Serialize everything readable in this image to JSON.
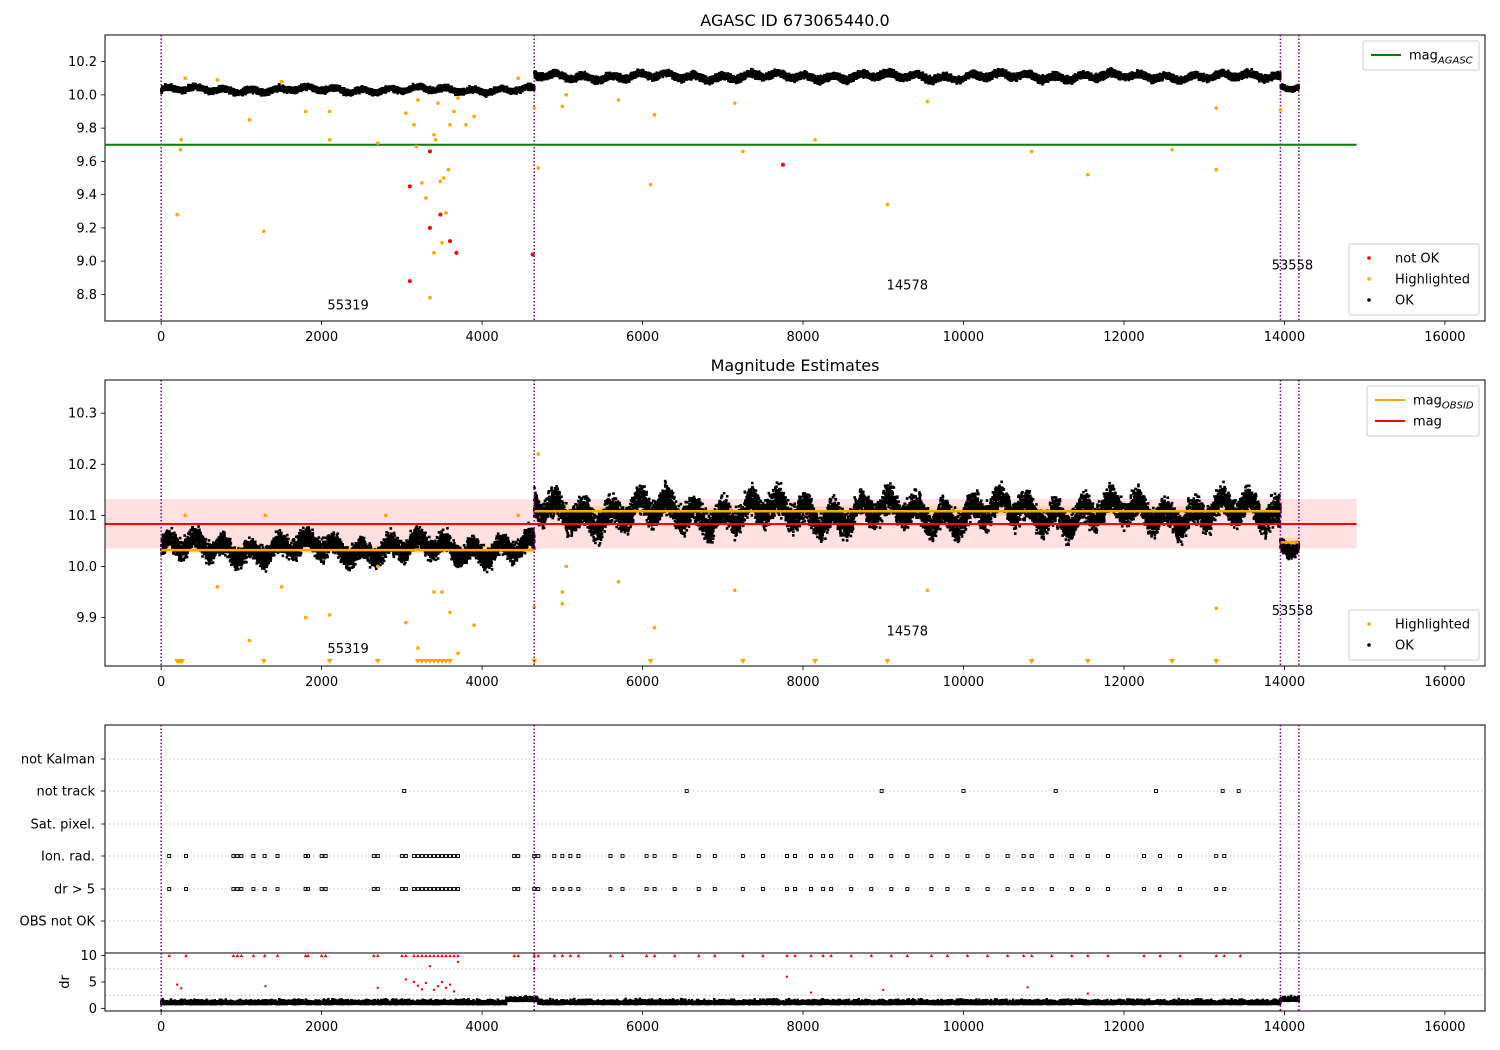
{
  "chart_data": [
    {
      "type": "scatter",
      "title": "AGASC ID 673065440.0",
      "xlim": [
        -700,
        16500
      ],
      "ylim": [
        8.64,
        10.36
      ],
      "xticks": [
        0,
        2000,
        4000,
        6000,
        8000,
        10000,
        12000,
        14000,
        16000
      ],
      "yticks": [
        8.8,
        9.0,
        9.2,
        9.4,
        9.6,
        9.8,
        10.0,
        10.2
      ],
      "obsid_boundaries": [
        0,
        4650,
        13950,
        14180
      ],
      "obsid_labels": [
        {
          "text": "55319",
          "x": 2330,
          "y": 8.71
        },
        {
          "text": "14578",
          "x": 9300,
          "y": 8.83
        },
        {
          "text": "53558",
          "x": 14100,
          "y": 8.95
        }
      ],
      "reference_line": {
        "name": "mag_AGASC",
        "y": 9.7,
        "x_range": [
          -700,
          14900
        ],
        "color": "#008000"
      },
      "series": [
        {
          "name": "OK",
          "color": "#000000",
          "segments": [
            {
              "x": [
                0,
                4650
              ],
              "y_mean": 10.03,
              "y_spread": 0.025
            },
            {
              "x": [
                4650,
                13950
              ],
              "y_mean": 10.11,
              "y_spread": 0.03
            },
            {
              "x": [
                13950,
                14180
              ],
              "y_mean": 10.05,
              "y_spread": 0.02
            }
          ]
        },
        {
          "name": "Highlighted",
          "color": "#ffa500",
          "points": [
            [
              200,
              9.28
            ],
            [
              240,
              9.67
            ],
            [
              250,
              9.73
            ],
            [
              300,
              10.1
            ],
            [
              700,
              10.09
            ],
            [
              1100,
              9.85
            ],
            [
              1280,
              9.18
            ],
            [
              1500,
              10.08
            ],
            [
              1800,
              9.9
            ],
            [
              2100,
              9.73
            ],
            [
              2100,
              9.9
            ],
            [
              2700,
              9.71
            ],
            [
              3050,
              9.89
            ],
            [
              3150,
              9.82
            ],
            [
              3180,
              9.69
            ],
            [
              3200,
              9.97
            ],
            [
              3250,
              9.47
            ],
            [
              3300,
              9.38
            ],
            [
              3350,
              8.78
            ],
            [
              3400,
              9.05
            ],
            [
              3400,
              9.76
            ],
            [
              3420,
              9.73
            ],
            [
              3450,
              9.95
            ],
            [
              3480,
              9.48
            ],
            [
              3500,
              9.11
            ],
            [
              3520,
              9.5
            ],
            [
              3550,
              9.29
            ],
            [
              3580,
              9.55
            ],
            [
              3600,
              9.82
            ],
            [
              3650,
              9.9
            ],
            [
              3700,
              9.98
            ],
            [
              3800,
              9.82
            ],
            [
              3900,
              9.87
            ],
            [
              4450,
              10.1
            ],
            [
              4650,
              9.92
            ],
            [
              4700,
              9.56
            ],
            [
              5000,
              9.93
            ],
            [
              5050,
              10.0
            ],
            [
              5700,
              9.97
            ],
            [
              6100,
              9.46
            ],
            [
              6150,
              9.88
            ],
            [
              7150,
              9.95
            ],
            [
              7250,
              9.66
            ],
            [
              8150,
              9.73
            ],
            [
              9050,
              9.34
            ],
            [
              9550,
              9.96
            ],
            [
              10850,
              9.66
            ],
            [
              11550,
              9.52
            ],
            [
              12600,
              9.67
            ],
            [
              13150,
              9.55
            ],
            [
              13150,
              9.92
            ],
            [
              13950,
              9.91
            ]
          ]
        },
        {
          "name": "not OK",
          "color": "#ff0000",
          "points": [
            [
              3100,
              9.45
            ],
            [
              3100,
              8.88
            ],
            [
              3350,
              9.66
            ],
            [
              3350,
              9.2
            ],
            [
              3480,
              9.28
            ],
            [
              3600,
              9.12
            ],
            [
              3680,
              9.05
            ],
            [
              4630,
              9.04
            ],
            [
              7750,
              9.58
            ]
          ]
        }
      ],
      "legends": [
        {
          "position": "upper right",
          "entries": [
            {
              "label": "mag",
              "sub": "AGASC",
              "color": "#008000",
              "marker": "line"
            }
          ]
        },
        {
          "position": "lower right",
          "entries": [
            {
              "label": "not OK",
              "color": "#ff0000",
              "marker": "dot"
            },
            {
              "label": "Highlighted",
              "color": "#ffa500",
              "marker": "dot"
            },
            {
              "label": "OK",
              "color": "#000000",
              "marker": "dot"
            }
          ]
        }
      ]
    },
    {
      "type": "scatter",
      "title": "Magnitude Estimates",
      "xlim": [
        -700,
        16500
      ],
      "ylim": [
        9.805,
        10.365
      ],
      "xticks": [
        0,
        2000,
        4000,
        6000,
        8000,
        10000,
        12000,
        14000,
        16000
      ],
      "yticks": [
        9.9,
        10.0,
        10.1,
        10.2,
        10.3
      ],
      "obsid_boundaries": [
        0,
        4650,
        13950,
        14180
      ],
      "obsid_labels": [
        {
          "text": "55319",
          "x": 2330,
          "y": 9.83
        },
        {
          "text": "14578",
          "x": 9300,
          "y": 9.865
        },
        {
          "text": "53558",
          "x": 14100,
          "y": 9.905
        }
      ],
      "mag_band": {
        "y": 10.083,
        "lower": 10.035,
        "upper": 10.132,
        "x_range": [
          -700,
          14900
        ],
        "color": "#ff0000"
      },
      "obsid_mags": [
        {
          "x": [
            0,
            4650
          ],
          "y": 10.032,
          "lower": 10.025,
          "upper": 10.04
        },
        {
          "x": [
            4650,
            13950
          ],
          "y": 10.108,
          "lower": 10.1,
          "upper": 10.117
        },
        {
          "x": [
            13950,
            14180
          ],
          "y": 10.047,
          "lower": 10.04,
          "upper": 10.055
        }
      ],
      "series": [
        {
          "name": "OK",
          "color": "#000000",
          "segments": [
            {
              "x": [
                0,
                4650
              ],
              "y_mean": 10.035,
              "y_spread": 0.03
            },
            {
              "x": [
                4650,
                13950
              ],
              "y_mean": 10.105,
              "y_spread": 0.04
            },
            {
              "x": [
                13950,
                14180
              ],
              "y_mean": 10.045,
              "y_spread": 0.02
            }
          ]
        },
        {
          "name": "Highlighted",
          "color": "#ffa500",
          "points": [
            [
              700,
              9.96
            ],
            [
              1100,
              9.855
            ],
            [
              1500,
              9.96
            ],
            [
              1800,
              9.9
            ],
            [
              2100,
              9.905
            ],
            [
              2700,
              10.0
            ],
            [
              3050,
              9.89
            ],
            [
              3200,
              9.84
            ],
            [
              3400,
              9.95
            ],
            [
              3500,
              9.95
            ],
            [
              3600,
              9.91
            ],
            [
              3700,
              9.83
            ],
            [
              3900,
              9.885
            ],
            [
              4650,
              9.92
            ],
            [
              5000,
              9.95
            ],
            [
              5000,
              9.927
            ],
            [
              5050,
              10.0
            ],
            [
              5700,
              9.97
            ],
            [
              6150,
              9.88
            ],
            [
              7150,
              9.953
            ],
            [
              9550,
              9.953
            ],
            [
              13150,
              9.918
            ],
            [
              300,
              10.1
            ],
            [
              1300,
              10.1
            ],
            [
              2800,
              10.1
            ],
            [
              4450,
              10.1
            ],
            [
              4700,
              10.22
            ]
          ]
        },
        {
          "name": "Highlighted (below axis)",
          "color": "#ffa500",
          "marker": "down-triangle",
          "y": 9.81,
          "x": [
            200,
            220,
            240,
            260,
            1280,
            2100,
            2700,
            3200,
            3250,
            3300,
            3350,
            3400,
            3450,
            3500,
            3550,
            3600,
            4650,
            6100,
            7250,
            8150,
            9050,
            10850,
            11550,
            12600,
            13150
          ]
        }
      ],
      "legends": [
        {
          "position": "upper right",
          "entries": [
            {
              "label": "mag",
              "sub": "OBSID",
              "color": "#ffa500",
              "marker": "line"
            },
            {
              "label": "mag",
              "color": "#ff0000",
              "marker": "line"
            }
          ]
        },
        {
          "position": "lower right",
          "entries": [
            {
              "label": "Highlighted",
              "color": "#ffa500",
              "marker": "dot"
            },
            {
              "label": "OK",
              "color": "#000000",
              "marker": "dot"
            }
          ]
        }
      ]
    },
    {
      "type": "scatter",
      "title": "",
      "xlim": [
        -700,
        16500
      ],
      "categories": [
        "not Kalman",
        "not track",
        "Sat. pixel.",
        "Ion. rad.",
        "dr > 5",
        "OBS not OK"
      ],
      "flags": {
        "not Kalman": [],
        "not track": [
          3030,
          6550,
          8980,
          10000,
          11150,
          12400,
          13230,
          13430
        ],
        "Sat. pixel.": [],
        "Ion. rad.": [
          100,
          310,
          900,
          950,
          1000,
          1150,
          1290,
          1450,
          1800,
          1830,
          2000,
          2050,
          2650,
          2700,
          3000,
          3050,
          3150,
          3200,
          3250,
          3300,
          3350,
          3400,
          3450,
          3500,
          3550,
          3600,
          3650,
          3700,
          4400,
          4450,
          4650,
          4700,
          4900,
          5000,
          5100,
          5200,
          5600,
          5750,
          6050,
          6150,
          6400,
          6700,
          6900,
          7250,
          7500,
          7800,
          7900,
          8100,
          8250,
          8350,
          8600,
          8850,
          9100,
          9300,
          9600,
          9800,
          10050,
          10300,
          10550,
          10750,
          10850,
          11100,
          11350,
          11550,
          11800,
          12250,
          12450,
          12700,
          13150,
          13250
        ],
        "dr > 5": [
          100,
          310,
          900,
          950,
          1000,
          1150,
          1290,
          1450,
          1800,
          1830,
          2000,
          2050,
          2650,
          2700,
          3000,
          3050,
          3150,
          3200,
          3250,
          3300,
          3350,
          3400,
          3450,
          3500,
          3550,
          3600,
          3650,
          3700,
          4400,
          4450,
          4650,
          4700,
          4900,
          5000,
          5100,
          5200,
          5600,
          5750,
          6050,
          6150,
          6400,
          6700,
          6900,
          7250,
          7500,
          7800,
          7900,
          8100,
          8250,
          8350,
          8600,
          8850,
          9100,
          9300,
          9600,
          9800,
          10050,
          10300,
          10550,
          10750,
          10850,
          11100,
          11350,
          11550,
          11800,
          12250,
          12450,
          12700,
          13150,
          13250
        ],
        "OBS not OK": []
      },
      "obsid_boundaries": [
        0,
        4650,
        13950,
        14180
      ]
    },
    {
      "type": "scatter",
      "title": "",
      "ylabel": "dr",
      "xlim": [
        -700,
        16500
      ],
      "ylim": [
        -0.5,
        10.5
      ],
      "xticks": [
        0,
        2000,
        4000,
        6000,
        8000,
        10000,
        12000,
        14000,
        16000
      ],
      "yticks": [
        0,
        5,
        10
      ],
      "obsid_boundaries": [
        0,
        4650,
        13950,
        14180
      ],
      "series": [
        {
          "name": "dr",
          "color": "#000000",
          "range": [
            0,
            14180
          ],
          "y_mean": 0.8,
          "y_spread": 0.6
        },
        {
          "name": "dr > 5 (clipped)",
          "color": "#ff0000",
          "y": 10,
          "x": [
            100,
            310,
            900,
            950,
            1000,
            1150,
            1290,
            1450,
            1800,
            1830,
            2000,
            2050,
            2650,
            2700,
            3000,
            3050,
            3150,
            3200,
            3250,
            3300,
            3350,
            3400,
            3450,
            3500,
            3550,
            3600,
            3650,
            3700,
            4400,
            4450,
            4650,
            4700,
            4900,
            5000,
            5100,
            5200,
            5600,
            5750,
            6050,
            6150,
            6400,
            6700,
            6900,
            7250,
            7500,
            7800,
            7900,
            8100,
            8250,
            8350,
            8600,
            8850,
            9100,
            9300,
            9600,
            9800,
            10050,
            10300,
            10550,
            10750,
            10850,
            11100,
            11350,
            11550,
            11800,
            12250,
            12450,
            12700,
            13150,
            13250,
            13450
          ]
        },
        {
          "name": "dr mid",
          "color": "#ff0000",
          "points": [
            [
              200,
              4.5
            ],
            [
              250,
              3.8
            ],
            [
              1300,
              4.2
            ],
            [
              2700,
              3.9
            ],
            [
              3050,
              5.5
            ],
            [
              3150,
              5.0
            ],
            [
              3200,
              4.3
            ],
            [
              3250,
              3.6
            ],
            [
              3300,
              4.8
            ],
            [
              3350,
              8.0
            ],
            [
              3400,
              3.5
            ],
            [
              3450,
              4.2
            ],
            [
              3500,
              5.0
            ],
            [
              3550,
              3.9
            ],
            [
              3600,
              4.5
            ],
            [
              3650,
              3.2
            ],
            [
              3700,
              8.8
            ],
            [
              4650,
              7.5
            ],
            [
              7800,
              6.0
            ],
            [
              8100,
              3.0
            ],
            [
              9000,
              3.5
            ],
            [
              10800,
              4.0
            ],
            [
              11550,
              2.8
            ]
          ]
        }
      ]
    }
  ]
}
